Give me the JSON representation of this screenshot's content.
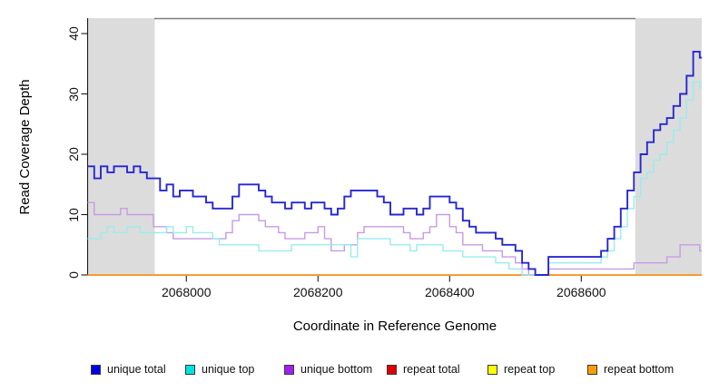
{
  "chart_data": {
    "type": "line",
    "step": true,
    "title": "",
    "xlabel": "Coordinate in Reference Genome",
    "ylabel": "Read Coverage Depth",
    "xlim": [
      2067850,
      2068783
    ],
    "ylim": [
      0,
      42
    ],
    "x_ticks": [
      2068000,
      2068200,
      2068400,
      2068600
    ],
    "y_ticks": [
      0,
      10,
      20,
      30,
      40
    ],
    "grid": false,
    "legend_position": "bottom",
    "shade_color": "#DCDCDC",
    "shaded_regions": [
      {
        "from": 2067850,
        "to": 2067952
      },
      {
        "from": 2068682,
        "to": 2068783
      }
    ],
    "x_start": 2067850,
    "x_step": 10,
    "series": [
      {
        "name": "repeat total",
        "color": "#E00000",
        "line_color": "#E00000",
        "line_width": 1.2,
        "constant": 0
      },
      {
        "name": "repeat top",
        "color": "#FFFF00",
        "line_color": "#FFE800",
        "line_width": 1.2,
        "constant": 0
      },
      {
        "name": "repeat bottom",
        "color": "#FF9D00",
        "line_color": "#FFA02E",
        "line_width": 1.7,
        "constant": 0
      },
      {
        "name": "unique bottom",
        "color": "#A020F0",
        "line_color": "#C79BE5",
        "line_width": 1.4,
        "values": [
          12,
          10,
          10,
          10,
          10,
          11,
          10,
          10,
          10,
          10,
          8,
          8,
          7,
          6,
          6,
          6,
          6,
          6,
          6,
          6,
          6,
          7,
          9,
          10,
          10,
          10,
          9,
          8,
          8,
          7,
          6,
          6,
          6,
          7,
          7,
          8,
          6,
          4,
          4,
          5,
          5,
          7,
          8,
          8,
          8,
          8,
          8,
          8,
          7,
          6,
          6,
          7,
          8,
          10,
          10,
          8,
          7,
          5,
          5,
          5,
          4,
          4,
          4,
          3,
          3,
          2,
          1,
          0,
          0,
          0,
          1,
          1,
          1,
          1,
          1,
          1,
          1,
          1,
          1,
          1,
          1,
          1,
          1,
          2,
          2,
          2,
          2,
          2,
          3,
          3,
          5,
          5,
          5,
          4
        ]
      },
      {
        "name": "unique top",
        "color": "#00E2E2",
        "line_color": "#99ECEC",
        "line_width": 1.4,
        "values": [
          6,
          6,
          7,
          8,
          7,
          7,
          8,
          8,
          7,
          7,
          7,
          7,
          8,
          7,
          7,
          8,
          7,
          7,
          7,
          6,
          5,
          5,
          5,
          5,
          5,
          5,
          4,
          4,
          4,
          4,
          4,
          5,
          5,
          5,
          5,
          5,
          5,
          5,
          5,
          5,
          3,
          6,
          6,
          6,
          6,
          6,
          5,
          5,
          5,
          4,
          5,
          5,
          5,
          5,
          4,
          4,
          4,
          3,
          3,
          3,
          3,
          3,
          2,
          2,
          1,
          1,
          0,
          0,
          0,
          0,
          2,
          2,
          2,
          2,
          2,
          2,
          2,
          2,
          3,
          4,
          6,
          8,
          11,
          13,
          16,
          17,
          19,
          20,
          22,
          24,
          26,
          29,
          32,
          31
        ]
      },
      {
        "name": "unique total",
        "color": "#0000E0",
        "line_color": "#2727D3",
        "line_width": 1.9,
        "values": [
          18,
          16,
          18,
          17,
          18,
          18,
          17,
          18,
          17,
          16,
          16,
          14,
          15,
          13,
          14,
          14,
          13,
          13,
          12,
          11,
          11,
          11,
          13,
          15,
          15,
          15,
          14,
          13,
          12,
          12,
          11,
          12,
          12,
          11,
          12,
          12,
          11,
          10,
          11,
          13,
          14,
          14,
          14,
          14,
          13,
          12,
          10,
          10,
          11,
          11,
          10,
          11,
          13,
          13,
          13,
          12,
          11,
          9,
          8,
          7,
          7,
          7,
          6,
          5,
          5,
          4,
          2,
          1,
          0,
          0,
          3,
          3,
          3,
          3,
          3,
          3,
          3,
          3,
          4,
          6,
          8,
          11,
          14,
          17,
          20,
          22,
          24,
          25,
          26,
          28,
          30,
          33,
          37,
          36
        ]
      }
    ],
    "legend_order": [
      "unique total",
      "unique top",
      "unique bottom",
      "repeat total",
      "repeat top",
      "repeat bottom"
    ]
  }
}
